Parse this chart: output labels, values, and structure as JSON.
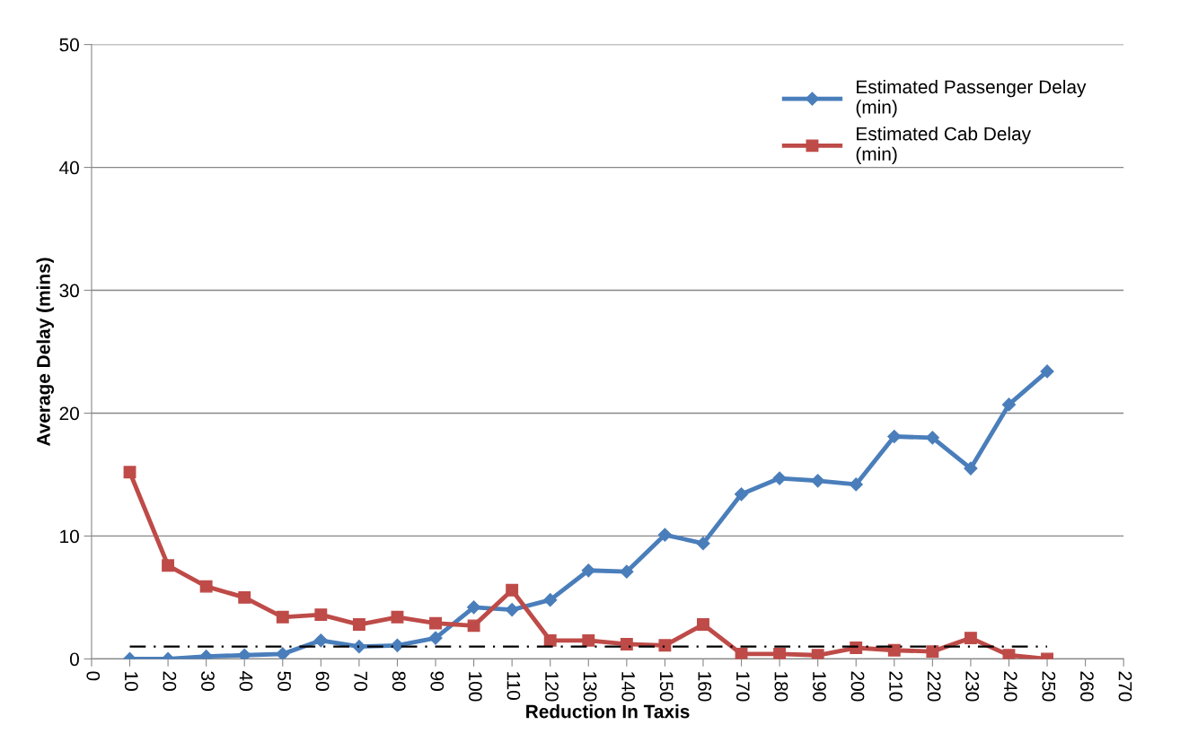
{
  "chart_data": {
    "type": "line",
    "xlabel": "Reduction In Taxis",
    "ylabel": "Average Delay (mins)",
    "x": [
      10,
      20,
      30,
      40,
      50,
      60,
      70,
      80,
      90,
      100,
      110,
      120,
      130,
      140,
      150,
      160,
      170,
      180,
      190,
      200,
      210,
      220,
      230,
      240,
      250
    ],
    "series": [
      {
        "name": "Estimated Passenger Delay (min)",
        "color": "#4a7ebb",
        "marker": "diamond",
        "values": [
          0,
          0,
          0.2,
          0.3,
          0.4,
          1.5,
          1.0,
          1.1,
          1.7,
          4.2,
          4.0,
          4.8,
          7.2,
          7.1,
          10.1,
          9.4,
          13.4,
          14.7,
          14.5,
          14.2,
          18.1,
          18.0,
          15.5,
          20.7,
          23.4
        ]
      },
      {
        "name": "Estimated Cab Delay (min)",
        "color": "#be4b48",
        "marker": "square",
        "values": [
          15.2,
          7.6,
          5.9,
          5.0,
          3.4,
          3.6,
          2.8,
          3.4,
          2.9,
          2.7,
          5.6,
          1.5,
          1.5,
          1.2,
          1.1,
          2.8,
          0.4,
          0.4,
          0.3,
          0.9,
          0.7,
          0.6,
          1.7,
          0.3,
          0
        ]
      },
      {
        "color": "#000000",
        "marker": "none",
        "line_style": "dashed",
        "values": [
          1,
          1,
          1,
          1,
          1,
          1,
          1,
          1,
          1,
          1,
          1,
          1,
          1,
          1,
          1,
          1,
          1,
          1,
          1,
          1,
          1,
          1,
          1,
          1,
          1
        ]
      }
    ],
    "xlim": [
      0,
      270
    ],
    "xticks": [
      0,
      10,
      20,
      30,
      40,
      50,
      60,
      70,
      80,
      90,
      100,
      110,
      120,
      130,
      140,
      150,
      160,
      170,
      180,
      190,
      200,
      210,
      220,
      230,
      240,
      250,
      260,
      270
    ],
    "ylim": [
      0,
      50
    ],
    "yticks": [
      0,
      10,
      20,
      30,
      40,
      50
    ],
    "grid": "y",
    "legend": "top right"
  }
}
